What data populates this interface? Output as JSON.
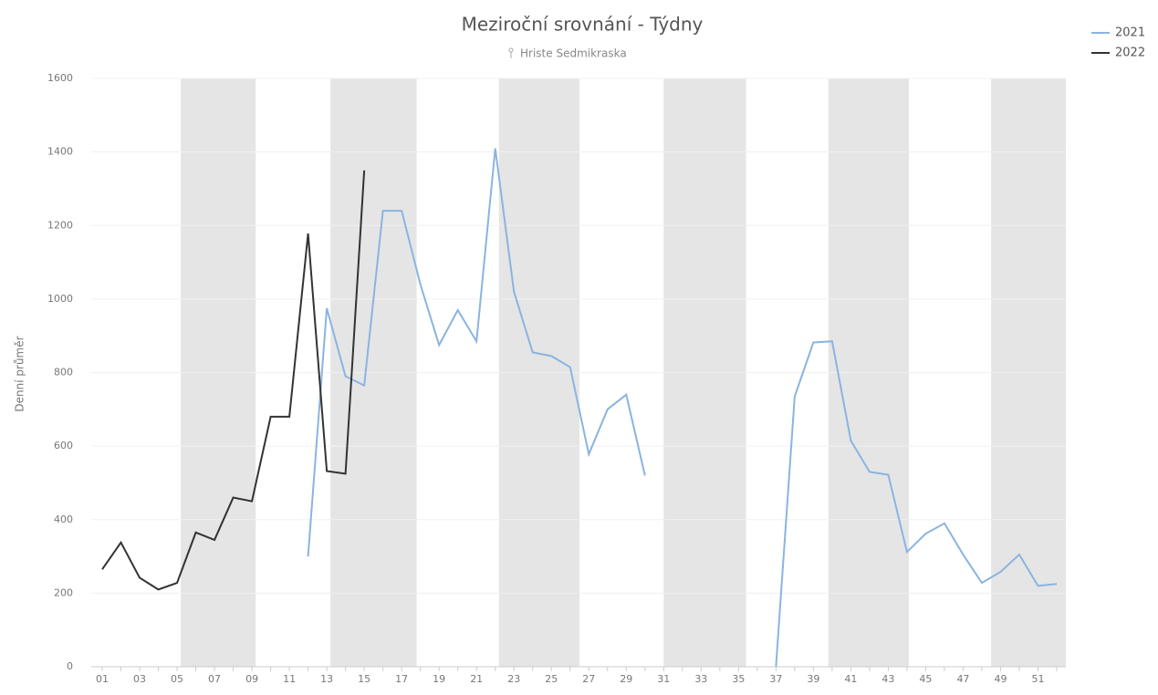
{
  "chart_data": {
    "type": "line",
    "title": "Meziroční srovnání - Týdny",
    "subtitle": "Hriste Sedmikraska",
    "y_label": "Denní průměr",
    "categories": [
      "01",
      null,
      "03",
      null,
      "05",
      null,
      "07",
      null,
      "09",
      null,
      "11",
      null,
      "13",
      null,
      "15",
      null,
      "17",
      null,
      "19",
      null,
      "21",
      null,
      "23",
      null,
      "25",
      null,
      "27",
      null,
      "29",
      null,
      "31",
      null,
      "33",
      null,
      "35",
      null,
      "37",
      null,
      "39",
      null,
      "41",
      null,
      "43",
      null,
      "45",
      null,
      "47",
      null,
      "49",
      null,
      "51",
      null
    ],
    "series": [
      {
        "name": "2021",
        "color": "#8ab4e0",
        "values": [
          null,
          null,
          null,
          null,
          null,
          null,
          null,
          null,
          null,
          null,
          null,
          300,
          975,
          790,
          765,
          1240,
          1240,
          1040,
          875,
          970,
          885,
          1410,
          1020,
          855,
          845,
          815,
          578,
          700,
          740,
          520,
          null,
          null,
          null,
          null,
          null,
          null,
          0,
          735,
          882,
          885,
          615,
          530,
          522,
          312,
          362,
          390,
          305,
          228,
          258,
          305,
          220,
          225
        ]
      },
      {
        "name": "2022",
        "color": "#333333",
        "values": [
          265,
          338,
          242,
          210,
          228,
          365,
          345,
          460,
          450,
          680,
          680,
          1178,
          532,
          525,
          1350,
          null,
          null,
          null,
          null,
          null,
          null,
          null,
          null,
          null,
          null,
          null,
          null,
          null,
          null,
          null,
          null,
          null,
          null,
          null,
          null,
          null,
          null,
          null,
          null,
          null,
          null,
          null,
          null,
          null,
          null,
          null,
          null,
          null,
          null,
          null,
          null,
          null
        ]
      }
    ],
    "ylim": [
      0,
      1600
    ],
    "yticks": [
      0,
      200,
      400,
      600,
      800,
      1000,
      1200,
      1400,
      1600
    ],
    "grid": true,
    "legend": "top-right"
  }
}
